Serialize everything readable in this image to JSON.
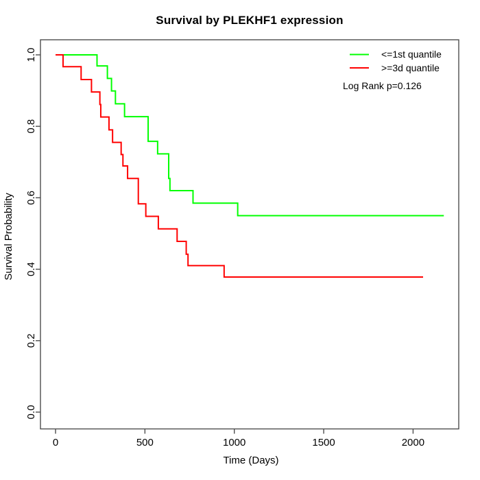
{
  "title": "Survival by PLEKHF1 expression",
  "legend": {
    "entries": [
      {
        "label": "<=1st quantile",
        "color": "#00FF00"
      },
      {
        "label": ">=3d quantile",
        "color": "#FF0000"
      }
    ],
    "note": "Log Rank p=0.126"
  },
  "chart_data": {
    "type": "line",
    "subtype": "kaplan-meier-step-curves",
    "title": "Survival by PLEKHF1 expression",
    "xlabel": "Time (Days)",
    "ylabel": "Survival Probability",
    "xlim": [
      0,
      2255
    ],
    "ylim": [
      0.0,
      1.0
    ],
    "x_ticks": [
      0,
      500,
      1000,
      1500,
      2000
    ],
    "y_ticks": [
      "0.0",
      "0.2",
      "0.4",
      "0.6",
      "0.8",
      "1.0"
    ],
    "grid": false,
    "legend_position": "top-right",
    "annotation": "Log Rank p=0.126",
    "series": [
      {
        "name": "<=1st quantile",
        "color": "#00FF00",
        "end_time": 2172,
        "steps": [
          [
            0,
            1.0
          ],
          [
            232,
            0.969
          ],
          [
            290,
            0.934
          ],
          [
            313,
            0.899
          ],
          [
            335,
            0.863
          ],
          [
            386,
            0.827
          ],
          [
            518,
            0.758
          ],
          [
            571,
            0.723
          ],
          [
            633,
            0.654
          ],
          [
            640,
            0.62
          ],
          [
            769,
            0.585
          ],
          [
            1019,
            0.55
          ]
        ]
      },
      {
        "name": ">=3d quantile",
        "color": "#FF0000",
        "end_time": 2056,
        "steps": [
          [
            0,
            1.0
          ],
          [
            42,
            0.967
          ],
          [
            143,
            0.931
          ],
          [
            201,
            0.896
          ],
          [
            248,
            0.861
          ],
          [
            253,
            0.826
          ],
          [
            299,
            0.79
          ],
          [
            319,
            0.755
          ],
          [
            367,
            0.721
          ],
          [
            377,
            0.689
          ],
          [
            403,
            0.654
          ],
          [
            463,
            0.583
          ],
          [
            505,
            0.548
          ],
          [
            575,
            0.513
          ],
          [
            680,
            0.478
          ],
          [
            731,
            0.442
          ],
          [
            741,
            0.41
          ],
          [
            943,
            0.378
          ]
        ]
      }
    ]
  }
}
